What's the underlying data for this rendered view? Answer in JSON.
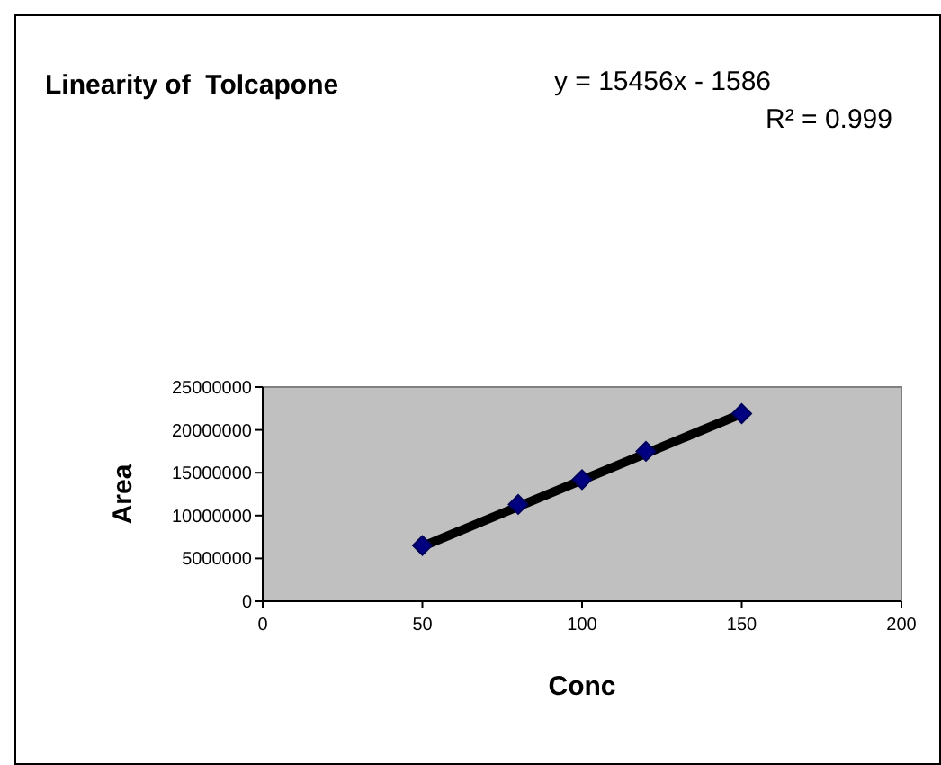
{
  "chart_data": {
    "type": "scatter",
    "title": "Linearity of  Tolcapone",
    "xlabel": "Conc",
    "ylabel": "Area",
    "annotations": [
      "y = 15456x - 1586",
      "R² = 0.999"
    ],
    "xlim": [
      0,
      200
    ],
    "xticks": [
      0,
      50,
      100,
      150,
      200
    ],
    "ylim": [
      0,
      25000000
    ],
    "yticks": [
      0,
      5000000,
      10000000,
      15000000,
      20000000,
      25000000
    ],
    "grid": false,
    "marker": "diamond",
    "series": [
      {
        "type": "line",
        "color": "#000000",
        "x": [
          50,
          150
        ],
        "values": [
          6400000,
          21900000
        ],
        "marker": "none"
      },
      {
        "color": "#000080",
        "x": [
          50,
          80,
          100,
          120,
          150
        ],
        "values": [
          6500000,
          11300000,
          14200000,
          17500000,
          21900000
        ]
      }
    ]
  }
}
